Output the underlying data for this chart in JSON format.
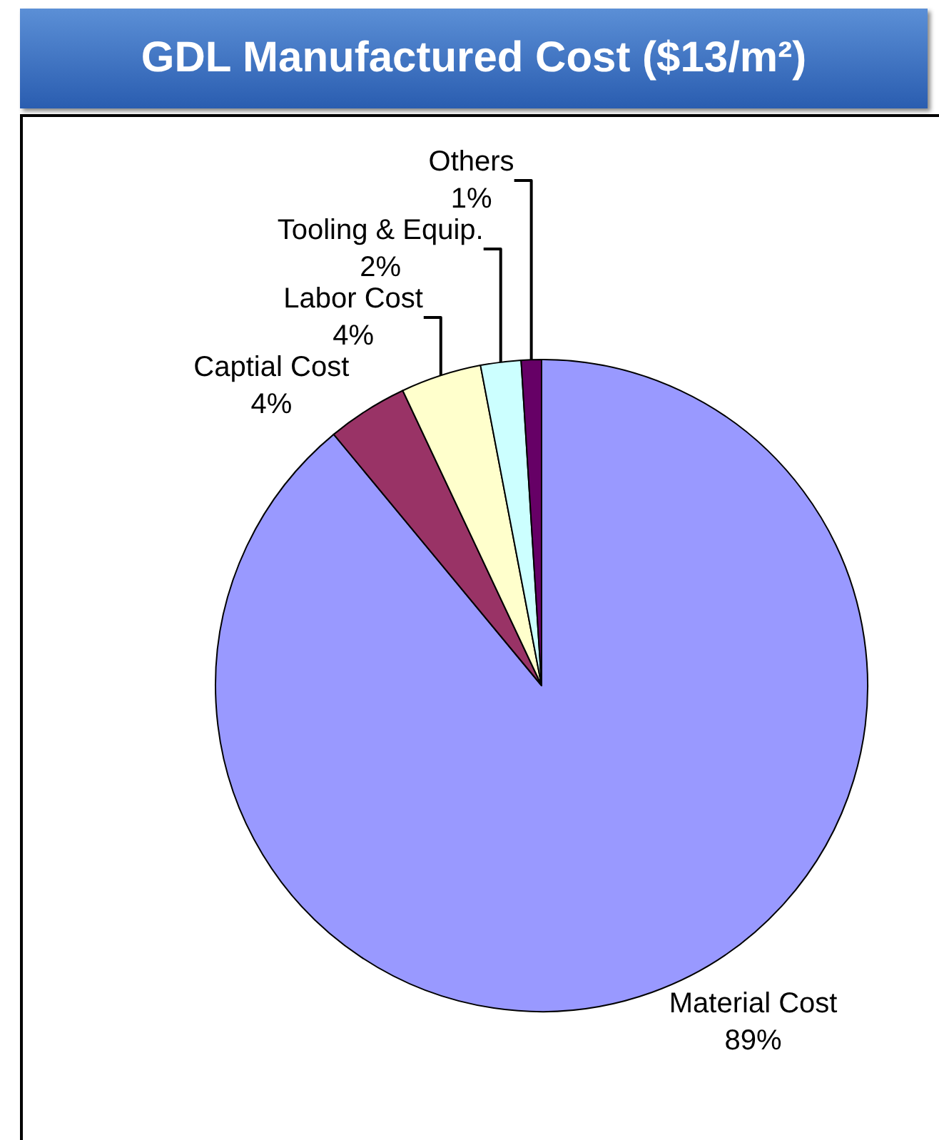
{
  "chart_data": {
    "type": "pie",
    "title": "GDL Manufactured Cost ($13/m²)",
    "categories": [
      "Material Cost",
      "Captial Cost",
      "Labor Cost",
      "Tooling & Equip.",
      "Others"
    ],
    "values": [
      89,
      4,
      4,
      2,
      1
    ],
    "value_labels": [
      "89%",
      "4%",
      "4%",
      "2%",
      "1%"
    ],
    "colors": [
      "#9999ff",
      "#993366",
      "#ffffcc",
      "#ccffff",
      "#660066"
    ],
    "legend": false
  }
}
